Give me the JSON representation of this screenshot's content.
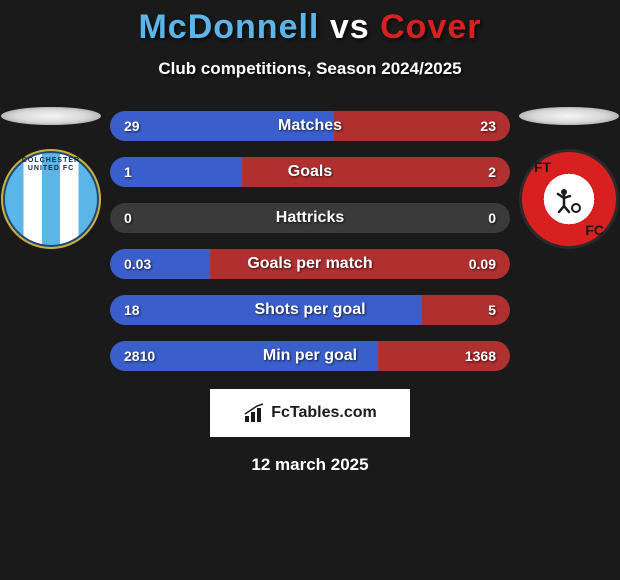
{
  "title": {
    "player1": "McDonnell",
    "vs": "vs",
    "player2": "Cover",
    "player1_color": "#5bb5e8",
    "vs_color": "#ffffff",
    "player2_color": "#d92020"
  },
  "subtitle": "Club competitions, Season 2024/2025",
  "player_left": {
    "club_name": "COLCHESTER UNITED FC",
    "badge_primary": "#5bb5e8",
    "badge_secondary": "#ffffff",
    "badge_border": "#1a4a7a"
  },
  "player_right": {
    "club_name": "FTFC",
    "badge_primary": "#d92020",
    "badge_secondary": "#ffffff"
  },
  "bar_left_color": "#3a5fcd",
  "bar_right_color": "#b03030",
  "bar_bg_color": "#3a3a3a",
  "stats": [
    {
      "label": "Matches",
      "left_val": "29",
      "right_val": "23",
      "left_pct": 56,
      "right_pct": 44
    },
    {
      "label": "Goals",
      "left_val": "1",
      "right_val": "2",
      "left_pct": 33,
      "right_pct": 67
    },
    {
      "label": "Hattricks",
      "left_val": "0",
      "right_val": "0",
      "left_pct": 0,
      "right_pct": 0
    },
    {
      "label": "Goals per match",
      "left_val": "0.03",
      "right_val": "0.09",
      "left_pct": 25,
      "right_pct": 75
    },
    {
      "label": "Shots per goal",
      "left_val": "18",
      "right_val": "5",
      "left_pct": 78,
      "right_pct": 22
    },
    {
      "label": "Min per goal",
      "left_val": "2810",
      "right_val": "1368",
      "left_pct": 67,
      "right_pct": 33
    }
  ],
  "footer_brand": "FcTables.com",
  "date": "12 march 2025"
}
